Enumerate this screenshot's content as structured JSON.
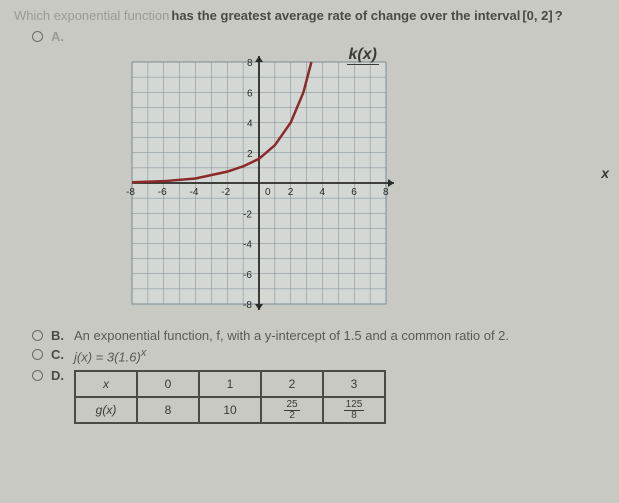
{
  "question": {
    "part1": "Which exponential function",
    "part2": " has the greatest average rate of change over the interval ",
    "interval": "[0, 2]",
    "qmark": "?"
  },
  "optionA": {
    "label": "A."
  },
  "chart": {
    "title": "k(x)",
    "xaxis_label": "x",
    "xticks": [
      -8,
      -6,
      -4,
      -2,
      0,
      2,
      4,
      6,
      8
    ],
    "yticks": [
      -8,
      -6,
      -4,
      -2,
      0,
      2,
      4,
      6,
      8
    ],
    "grid_color": "#7a8a92",
    "axis_color": "#2a2b27",
    "curve_color": "#8b2a2a",
    "background": "#d4d8d4",
    "curve_points": [
      [
        -8,
        0.05
      ],
      [
        -6,
        0.12
      ],
      [
        -4,
        0.3
      ],
      [
        -2,
        0.75
      ],
      [
        -1,
        1.1
      ],
      [
        0,
        1.6
      ],
      [
        1,
        2.5
      ],
      [
        2,
        4
      ],
      [
        2.8,
        6
      ],
      [
        3.3,
        8
      ]
    ]
  },
  "optionB": {
    "label": "B.",
    "text": "An exponential function, f, with a y-intercept of 1.5 and a common ratio of 2."
  },
  "optionC": {
    "label": "C.",
    "formula_lhs": "j(x)",
    "formula_eq": " = ",
    "formula_coef": "3(1.6)",
    "formula_exp": "x"
  },
  "optionD": {
    "label": "D.",
    "table": {
      "head_var": "x",
      "head_fn": "g(x)",
      "cols": [
        "0",
        "1",
        "2",
        "3"
      ],
      "vals": [
        "8",
        "10",
        {
          "n": "25",
          "d": "2"
        },
        {
          "n": "125",
          "d": "8"
        }
      ]
    }
  }
}
